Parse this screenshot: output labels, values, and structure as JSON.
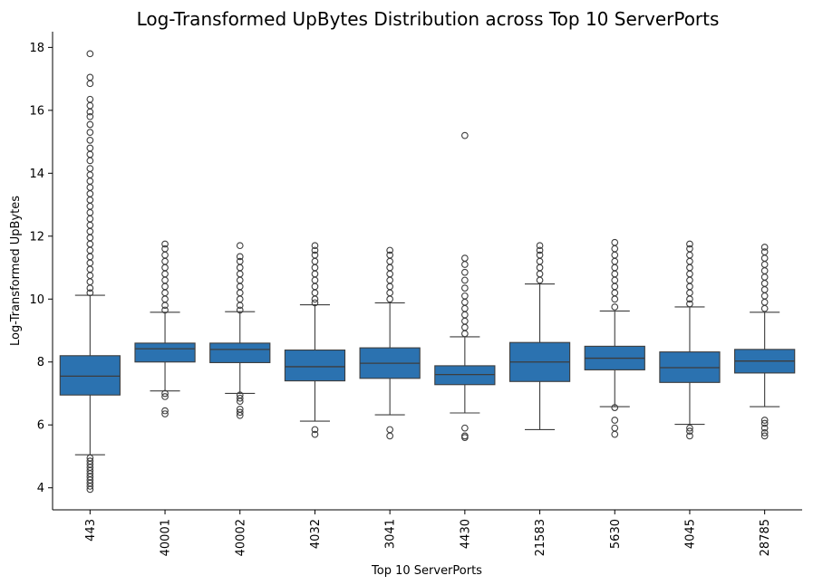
{
  "chart_data": {
    "type": "box",
    "title": "Log-Transformed UpBytes Distribution across Top 10 ServerPorts",
    "xlabel": "Top 10 ServerPorts",
    "ylabel": "Log-Transformed UpBytes",
    "ylim": [
      3.3,
      18.5
    ],
    "yticks": [
      4,
      6,
      8,
      10,
      12,
      14,
      16,
      18
    ],
    "box_color": "#2b72b0",
    "line_color": "#3d3d3d",
    "categories": [
      "443",
      "40001",
      "40002",
      "4032",
      "3041",
      "4430",
      "21583",
      "5630",
      "4045",
      "28785"
    ],
    "boxes": [
      {
        "category": "443",
        "whisker_low": 5.05,
        "q1": 6.95,
        "median": 7.55,
        "q3": 8.2,
        "whisker_high": 10.12,
        "fliers": [
          17.8,
          17.05,
          16.85,
          16.35,
          16.15,
          15.95,
          15.8,
          15.55,
          15.3,
          15.05,
          14.8,
          14.6,
          14.4,
          14.15,
          13.95,
          13.75,
          13.55,
          13.35,
          13.15,
          12.95,
          12.75,
          12.55,
          12.35,
          12.15,
          11.95,
          11.75,
          11.55,
          11.35,
          11.15,
          10.95,
          10.75,
          10.55,
          10.35,
          10.2,
          4.95,
          4.85,
          4.75,
          4.65,
          4.55,
          4.45,
          4.35,
          4.25,
          4.15,
          4.05,
          3.95
        ]
      },
      {
        "category": "40001",
        "whisker_low": 7.08,
        "q1": 8.0,
        "median": 8.42,
        "q3": 8.6,
        "whisker_high": 9.58,
        "fliers": [
          11.75,
          11.6,
          11.4,
          11.2,
          11.0,
          10.8,
          10.6,
          10.4,
          10.2,
          10.0,
          9.8,
          9.65,
          7.0,
          6.9,
          6.45,
          6.35
        ]
      },
      {
        "category": "40002",
        "whisker_low": 7.0,
        "q1": 7.98,
        "median": 8.4,
        "q3": 8.6,
        "whisker_high": 9.6,
        "fliers": [
          11.7,
          11.35,
          11.2,
          11.0,
          10.8,
          10.6,
          10.4,
          10.2,
          10.0,
          9.8,
          9.65,
          6.95,
          6.85,
          6.75,
          6.5,
          6.4,
          6.3
        ]
      },
      {
        "category": "4032",
        "whisker_low": 6.12,
        "q1": 7.4,
        "median": 7.85,
        "q3": 8.38,
        "whisker_high": 9.82,
        "fliers": [
          11.7,
          11.55,
          11.4,
          11.2,
          11.0,
          10.8,
          10.6,
          10.4,
          10.2,
          10.0,
          9.88,
          5.85,
          5.7
        ]
      },
      {
        "category": "3041",
        "whisker_low": 6.32,
        "q1": 7.48,
        "median": 7.96,
        "q3": 8.45,
        "whisker_high": 9.88,
        "fliers": [
          11.55,
          11.4,
          11.2,
          11.0,
          10.8,
          10.6,
          10.4,
          10.2,
          10.0,
          5.85,
          5.65
        ]
      },
      {
        "category": "4430",
        "whisker_low": 6.38,
        "q1": 7.28,
        "median": 7.6,
        "q3": 7.88,
        "whisker_high": 8.8,
        "fliers": [
          15.2,
          11.3,
          11.1,
          10.85,
          10.6,
          10.35,
          10.1,
          9.9,
          9.7,
          9.5,
          9.3,
          9.1,
          8.9,
          5.9,
          5.65,
          5.6
        ]
      },
      {
        "category": "21583",
        "whisker_low": 5.85,
        "q1": 7.38,
        "median": 8.0,
        "q3": 8.62,
        "whisker_high": 10.48,
        "fliers": [
          11.7,
          11.55,
          11.4,
          11.2,
          11.0,
          10.8,
          10.6
        ]
      },
      {
        "category": "5630",
        "whisker_low": 6.58,
        "q1": 7.75,
        "median": 8.12,
        "q3": 8.5,
        "whisker_high": 9.62,
        "fliers": [
          11.8,
          11.6,
          11.4,
          11.2,
          11.0,
          10.8,
          10.6,
          10.4,
          10.2,
          10.0,
          9.75,
          6.55,
          6.15,
          5.9,
          5.7
        ]
      },
      {
        "category": "4045",
        "whisker_low": 6.02,
        "q1": 7.35,
        "median": 7.82,
        "q3": 8.32,
        "whisker_high": 9.75,
        "fliers": [
          11.75,
          11.6,
          11.4,
          11.2,
          11.0,
          10.8,
          10.6,
          10.4,
          10.2,
          10.0,
          9.85,
          5.9,
          5.8,
          5.65
        ]
      },
      {
        "category": "28785",
        "whisker_low": 6.58,
        "q1": 7.65,
        "median": 8.03,
        "q3": 8.4,
        "whisker_high": 9.58,
        "fliers": [
          11.65,
          11.5,
          11.3,
          11.1,
          10.9,
          10.7,
          10.5,
          10.3,
          10.1,
          9.9,
          9.7,
          6.15,
          6.05,
          5.9,
          5.75,
          5.65
        ]
      }
    ]
  }
}
